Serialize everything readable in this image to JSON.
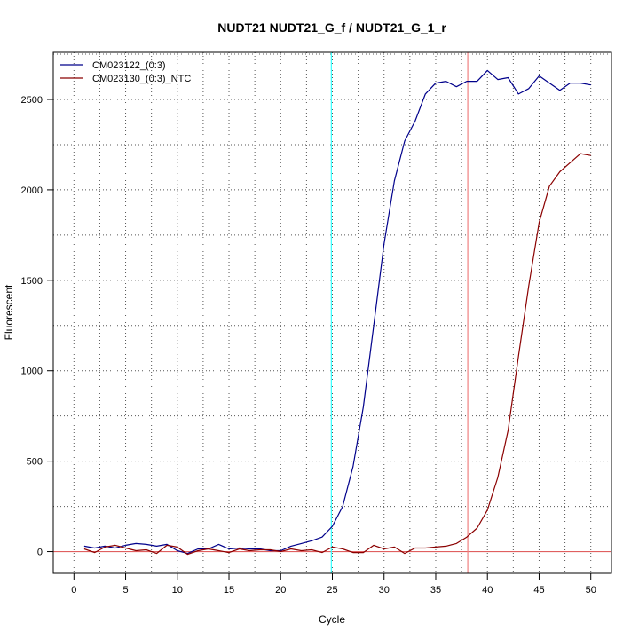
{
  "chart_data": {
    "type": "line",
    "title": "NUDT21  NUDT21_G_f / NUDT21_G_1_r",
    "xlabel": "Cycle",
    "ylabel": "Fluorescent",
    "xlim": [
      -2,
      52
    ],
    "ylim": [
      -120,
      2760
    ],
    "xticks": [
      0,
      5,
      10,
      15,
      20,
      25,
      30,
      35,
      40,
      45,
      50
    ],
    "yticks": [
      0,
      500,
      1000,
      1500,
      2000,
      2500
    ],
    "grid": "dotted",
    "legend": "top-left",
    "x": [
      1,
      2,
      3,
      4,
      5,
      6,
      7,
      8,
      9,
      10,
      11,
      12,
      13,
      14,
      15,
      16,
      17,
      18,
      19,
      20,
      21,
      22,
      23,
      24,
      25,
      26,
      27,
      28,
      29,
      30,
      31,
      32,
      33,
      34,
      35,
      36,
      37,
      38,
      39,
      40,
      41,
      42,
      43,
      44,
      45,
      46,
      47,
      48,
      49,
      50
    ],
    "series": [
      {
        "name": "CM023122_(0:3)",
        "color": "#00008B",
        "values": [
          30,
          20,
          30,
          20,
          35,
          45,
          40,
          30,
          40,
          5,
          -10,
          15,
          15,
          40,
          15,
          20,
          15,
          15,
          5,
          5,
          30,
          45,
          60,
          80,
          140,
          250,
          470,
          800,
          1250,
          1700,
          2050,
          2270,
          2380,
          2530,
          2590,
          2600,
          2570,
          2600,
          2600,
          2660,
          2610,
          2620,
          2530,
          2560,
          2630,
          2590,
          2550,
          2590,
          2590,
          2580
        ]
      },
      {
        "name": "CM023130_(0:3)_NTC",
        "color": "#8B0000",
        "values": [
          15,
          -5,
          25,
          35,
          20,
          5,
          10,
          -10,
          35,
          25,
          -15,
          5,
          15,
          5,
          -5,
          15,
          5,
          10,
          10,
          0,
          15,
          5,
          10,
          -5,
          25,
          15,
          -5,
          -5,
          35,
          15,
          25,
          -10,
          20,
          20,
          25,
          30,
          45,
          80,
          130,
          230,
          410,
          670,
          1080,
          1470,
          1820,
          2020,
          2100,
          2150,
          2200,
          2190
        ]
      }
    ],
    "threshold": {
      "value": 0,
      "color": "#E06060"
    },
    "vertical_lines": [
      {
        "x": 24.9,
        "color": "#33FFFF"
      },
      {
        "x": 38.1,
        "color": "#F08080"
      }
    ]
  }
}
